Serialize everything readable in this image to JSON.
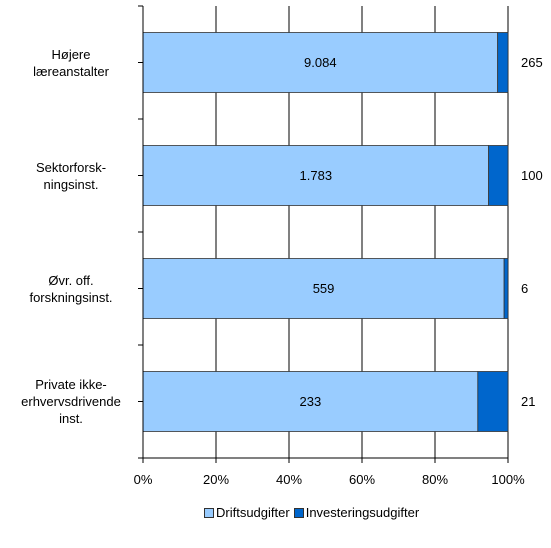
{
  "chart_data": {
    "type": "bar",
    "orientation": "horizontal",
    "stacked": "percent",
    "categories": [
      "Højere\nlæreanstalter",
      "Sektorforsk-\nningsinst.",
      "Øvr. off.\nforskningsinst.",
      "Private ikke-\nerhvervsdrivende\ninst."
    ],
    "series": [
      {
        "name": "Driftsudgifter",
        "values": [
          9084,
          1783,
          559,
          233
        ],
        "labels": [
          "9.084",
          "1.783",
          "559",
          "233"
        ],
        "color": "#99ccff"
      },
      {
        "name": "Investeringsudgifter",
        "values": [
          265,
          100,
          6,
          21
        ],
        "labels": [
          "265",
          "100",
          "6",
          "21"
        ],
        "color": "#0066cc"
      }
    ],
    "xlim": [
      0,
      100
    ],
    "xticks": [
      "0%",
      "20%",
      "40%",
      "60%",
      "80%",
      "100%"
    ],
    "grid": true,
    "legend": "bottom"
  }
}
